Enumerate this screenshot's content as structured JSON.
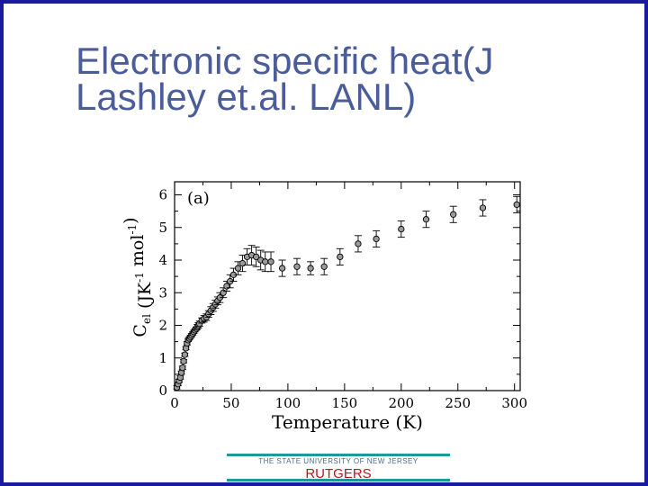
{
  "slide": {
    "title_line1": "Electronic specific heat(J",
    "title_line2": "Lashley et.al. LANL)"
  },
  "footer": {
    "university": "THE STATE UNIVERSITY OF NEW JERSEY",
    "name": "RUTGERS",
    "accent_color": "#1a9a9a",
    "name_color": "#c0141e"
  },
  "colors": {
    "title": "#4a5c9a",
    "border": "#1a1aa0"
  },
  "chart_data": {
    "type": "scatter",
    "panel_label": "(a)",
    "xlabel": "Temperature (K)",
    "ylabel_base": "C",
    "ylabel_sub": "el",
    "ylabel_units": "(JK",
    "ylabel_units2": "mol",
    "xlim": [
      0,
      305
    ],
    "ylim": [
      0,
      6.4
    ],
    "xticks": [
      0,
      50,
      100,
      150,
      200,
      250,
      300
    ],
    "yticks": [
      0,
      1,
      2,
      3,
      4,
      5,
      6
    ],
    "grid": false,
    "legend": "none",
    "series": [
      {
        "x": [
          2,
          3,
          4,
          5,
          6,
          7,
          8,
          9,
          10,
          11,
          12,
          13,
          14,
          15,
          16,
          17,
          18,
          19,
          20,
          21,
          22,
          24,
          26,
          28,
          30,
          32,
          34,
          36,
          38,
          40,
          43,
          46,
          49,
          52,
          56,
          60,
          64,
          68,
          72,
          76,
          80,
          85,
          95,
          108,
          120,
          132,
          146,
          162,
          178,
          200,
          222,
          246,
          272,
          302
        ],
        "y": [
          0.1,
          0.2,
          0.3,
          0.4,
          0.55,
          0.7,
          0.9,
          1.1,
          1.3,
          1.45,
          1.55,
          1.6,
          1.65,
          1.7,
          1.75,
          1.8,
          1.85,
          1.9,
          1.95,
          2.0,
          2.05,
          2.15,
          2.2,
          2.25,
          2.35,
          2.45,
          2.55,
          2.65,
          2.75,
          2.85,
          3.0,
          3.2,
          3.35,
          3.55,
          3.75,
          3.9,
          4.1,
          4.15,
          4.1,
          4.0,
          3.95,
          3.95,
          3.75,
          3.8,
          3.75,
          3.8,
          4.1,
          4.5,
          4.65,
          4.95,
          5.25,
          5.4,
          5.6,
          5.7
        ],
        "err": [
          0.05,
          0.05,
          0.05,
          0.05,
          0.05,
          0.05,
          0.05,
          0.05,
          0.05,
          0.05,
          0.05,
          0.05,
          0.05,
          0.05,
          0.05,
          0.05,
          0.05,
          0.05,
          0.08,
          0.08,
          0.08,
          0.08,
          0.1,
          0.1,
          0.1,
          0.12,
          0.12,
          0.12,
          0.12,
          0.15,
          0.15,
          0.15,
          0.2,
          0.2,
          0.2,
          0.25,
          0.25,
          0.3,
          0.3,
          0.3,
          0.3,
          0.3,
          0.25,
          0.25,
          0.2,
          0.25,
          0.25,
          0.25,
          0.25,
          0.25,
          0.25,
          0.25,
          0.25,
          0.25
        ]
      }
    ]
  }
}
